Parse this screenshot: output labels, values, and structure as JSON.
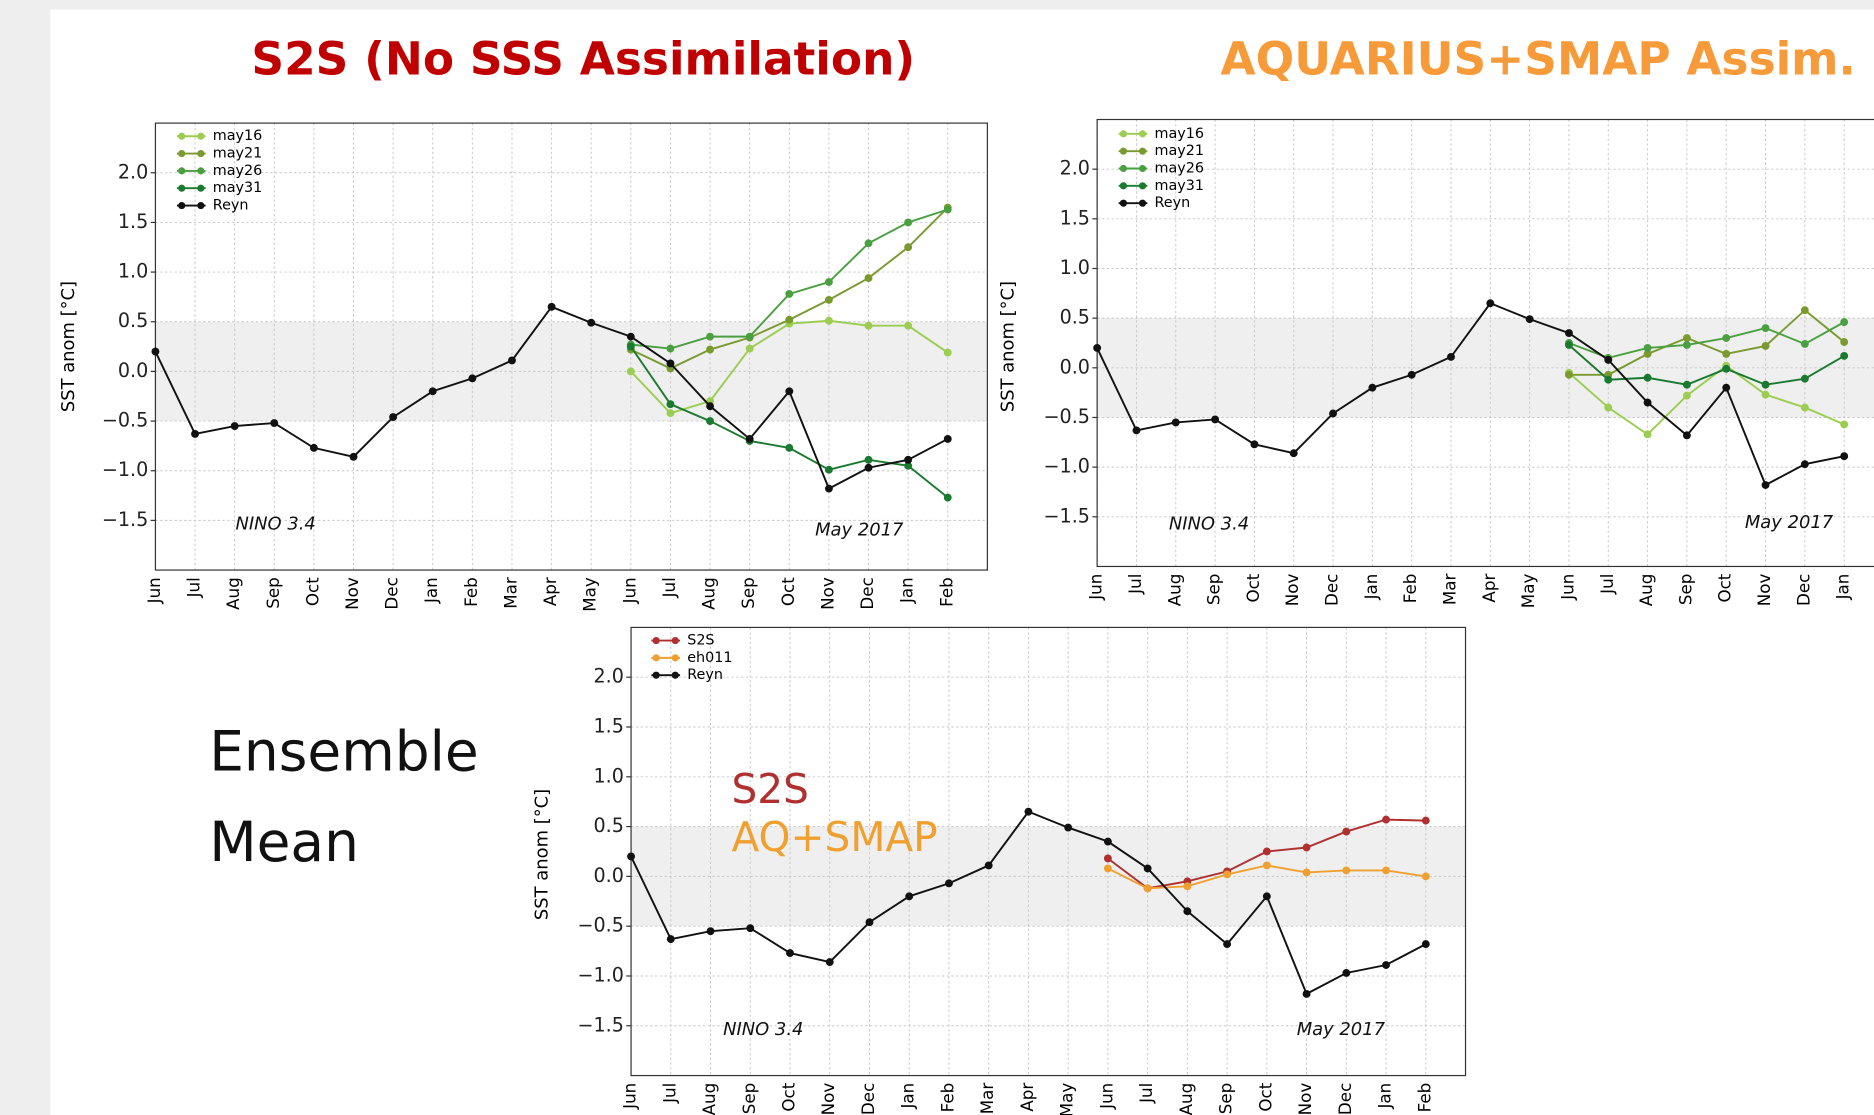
{
  "chart_data": [
    {
      "type": "line",
      "title": "S2S (No SSS Assimilation)",
      "title_color": "#c00000",
      "y_label": "SST anom [°C]",
      "categories": [
        "Jun",
        "Jul",
        "Aug",
        "Sep",
        "Oct",
        "Nov",
        "Dec",
        "Jan",
        "Feb",
        "Mar",
        "Apr",
        "May",
        "Jun",
        "Jul",
        "Aug",
        "Sep",
        "Oct",
        "Nov",
        "Dec",
        "Jan",
        "Feb"
      ],
      "series": [
        {
          "name": "may16",
          "color": "#9acd50",
          "values": [
            null,
            null,
            null,
            null,
            null,
            null,
            null,
            null,
            null,
            null,
            null,
            null,
            0.0,
            -0.42,
            -0.3,
            0.23,
            0.48,
            0.51,
            0.46,
            0.46,
            0.19
          ]
        },
        {
          "name": "may21",
          "color": "#7a9a30",
          "values": [
            null,
            null,
            null,
            null,
            null,
            null,
            null,
            null,
            null,
            null,
            null,
            null,
            0.22,
            0.03,
            0.22,
            0.34,
            0.52,
            0.72,
            0.94,
            1.25,
            1.65
          ]
        },
        {
          "name": "may26",
          "color": "#4aa040",
          "values": [
            null,
            null,
            null,
            null,
            null,
            null,
            null,
            null,
            null,
            null,
            null,
            null,
            0.27,
            0.23,
            0.35,
            0.35,
            0.78,
            0.9,
            1.29,
            1.5,
            1.63
          ]
        },
        {
          "name": "may31",
          "color": "#1a7a30",
          "values": [
            null,
            null,
            null,
            null,
            null,
            null,
            null,
            null,
            null,
            null,
            null,
            null,
            0.25,
            -0.33,
            -0.5,
            -0.7,
            -0.77,
            -0.99,
            -0.89,
            -0.95,
            -1.27
          ]
        },
        {
          "name": "Reyn",
          "color": "#111111",
          "values": [
            0.2,
            -0.63,
            -0.55,
            -0.52,
            -0.77,
            -0.86,
            -0.46,
            -0.2,
            -0.07,
            0.11,
            0.65,
            0.49,
            0.35,
            0.08,
            -0.35,
            -0.68,
            -0.2,
            -1.18,
            -0.97,
            -0.89,
            -0.68
          ]
        }
      ],
      "ylim": [
        -2.0,
        2.5
      ],
      "yticks": [
        {
          "value": -1.5,
          "label": "−1.5"
        },
        {
          "value": -1.0,
          "label": "−1.0"
        },
        {
          "value": -0.5,
          "label": "−0.5"
        },
        {
          "value": 0.0,
          "label": "0.0"
        },
        {
          "value": 0.5,
          "label": "0.5"
        },
        {
          "value": 1.0,
          "label": "1.0"
        },
        {
          "value": 1.5,
          "label": "1.5"
        },
        {
          "value": 2.0,
          "label": "2.0"
        }
      ],
      "shade": [
        -0.5,
        0.5
      ],
      "grid": true,
      "legend": "upper left",
      "annotations": [
        {
          "text": "NINO 3.4"
        },
        {
          "text": "May 2017"
        }
      ]
    },
    {
      "type": "line",
      "title": "AQUARIUS+SMAP Assim.",
      "title_color": "#f79a3a",
      "y_label": "SST anom [°C]",
      "categories": [
        "Jun",
        "Jul",
        "Aug",
        "Sep",
        "Oct",
        "Nov",
        "Dec",
        "Jan",
        "Feb",
        "Mar",
        "Apr",
        "May",
        "Jun",
        "Jul",
        "Aug",
        "Sep",
        "Oct",
        "Nov",
        "Dec",
        "Jan"
      ],
      "series": [
        {
          "name": "may16",
          "color": "#9acd50",
          "values": [
            null,
            null,
            null,
            null,
            null,
            null,
            null,
            null,
            null,
            null,
            null,
            null,
            -0.05,
            -0.4,
            -0.67,
            -0.28,
            0.02,
            -0.27,
            -0.4,
            -0.57
          ]
        },
        {
          "name": "may21",
          "color": "#7a9a30",
          "values": [
            null,
            null,
            null,
            null,
            null,
            null,
            null,
            null,
            null,
            null,
            null,
            null,
            -0.07,
            -0.07,
            0.14,
            0.3,
            0.14,
            0.22,
            0.58,
            0.26
          ]
        },
        {
          "name": "may26",
          "color": "#4aa040",
          "values": [
            null,
            null,
            null,
            null,
            null,
            null,
            null,
            null,
            null,
            null,
            null,
            null,
            0.25,
            0.1,
            0.2,
            0.23,
            0.3,
            0.4,
            0.24,
            0.46
          ]
        },
        {
          "name": "may31",
          "color": "#1a7a30",
          "values": [
            null,
            null,
            null,
            null,
            null,
            null,
            null,
            null,
            null,
            null,
            null,
            null,
            0.23,
            -0.12,
            -0.1,
            -0.17,
            -0.01,
            -0.17,
            -0.11,
            0.12
          ]
        },
        {
          "name": "Reyn",
          "color": "#111111",
          "values": [
            0.2,
            -0.63,
            -0.55,
            -0.52,
            -0.77,
            -0.86,
            -0.46,
            -0.2,
            -0.07,
            0.11,
            0.65,
            0.49,
            0.35,
            0.08,
            -0.35,
            -0.68,
            -0.2,
            -1.18,
            -0.97,
            -0.89
          ]
        }
      ],
      "ylim": [
        -2.0,
        2.5
      ],
      "yticks": [
        {
          "value": -1.5,
          "label": "−1.5"
        },
        {
          "value": -1.0,
          "label": "−1.0"
        },
        {
          "value": -0.5,
          "label": "−0.5"
        },
        {
          "value": 0.0,
          "label": "0.0"
        },
        {
          "value": 0.5,
          "label": "0.5"
        },
        {
          "value": 1.0,
          "label": "1.0"
        },
        {
          "value": 1.5,
          "label": "1.5"
        },
        {
          "value": 2.0,
          "label": "2.0"
        }
      ],
      "shade": [
        -0.5,
        0.5
      ],
      "grid": true,
      "legend": "upper left",
      "annotations": [
        {
          "text": "NINO 3.4"
        },
        {
          "text": "May 2017"
        }
      ]
    },
    {
      "type": "line",
      "side_label_lines": [
        "Ensemble",
        "Mean"
      ],
      "y_label": "SST anom [°C]",
      "categories": [
        "Jun",
        "Jul",
        "Aug",
        "Sep",
        "Oct",
        "Nov",
        "Dec",
        "Jan",
        "Feb",
        "Mar",
        "Apr",
        "May",
        "Jun",
        "Jul",
        "Aug",
        "Sep",
        "Oct",
        "Nov",
        "Dec",
        "Jan",
        "Feb"
      ],
      "series": [
        {
          "name": "S2S",
          "color": "#b03030",
          "values": [
            null,
            null,
            null,
            null,
            null,
            null,
            null,
            null,
            null,
            null,
            null,
            null,
            0.18,
            -0.12,
            -0.05,
            0.05,
            0.25,
            0.29,
            0.45,
            0.57,
            0.56
          ]
        },
        {
          "name": "eh011",
          "color": "#f0a030",
          "values": [
            null,
            null,
            null,
            null,
            null,
            null,
            null,
            null,
            null,
            null,
            null,
            null,
            0.08,
            -0.12,
            -0.1,
            0.02,
            0.11,
            0.04,
            0.06,
            0.06,
            0.0
          ]
        },
        {
          "name": "Reyn",
          "color": "#111111",
          "values": [
            0.2,
            -0.63,
            -0.55,
            -0.52,
            -0.77,
            -0.86,
            -0.46,
            -0.2,
            -0.07,
            0.11,
            0.65,
            0.49,
            0.35,
            0.08,
            -0.35,
            -0.68,
            -0.2,
            -1.18,
            -0.97,
            -0.89,
            -0.68
          ]
        }
      ],
      "ylim": [
        -2.0,
        2.5
      ],
      "yticks": [
        {
          "value": -1.5,
          "label": "−1.5"
        },
        {
          "value": -1.0,
          "label": "−1.0"
        },
        {
          "value": -0.5,
          "label": "−0.5"
        },
        {
          "value": 0.0,
          "label": "0.0"
        },
        {
          "value": 0.5,
          "label": "0.5"
        },
        {
          "value": 1.0,
          "label": "1.0"
        },
        {
          "value": 1.5,
          "label": "1.5"
        },
        {
          "value": 2.0,
          "label": "2.0"
        }
      ],
      "shade": [
        -0.5,
        0.5
      ],
      "grid": true,
      "legend": "upper left",
      "annotations": [
        {
          "text": "NINO 3.4"
        },
        {
          "text": "May 2017"
        },
        {
          "text": "S2S",
          "color": "#b03030"
        },
        {
          "text": "AQ+SMAP",
          "color": "#f0a030"
        }
      ]
    }
  ]
}
